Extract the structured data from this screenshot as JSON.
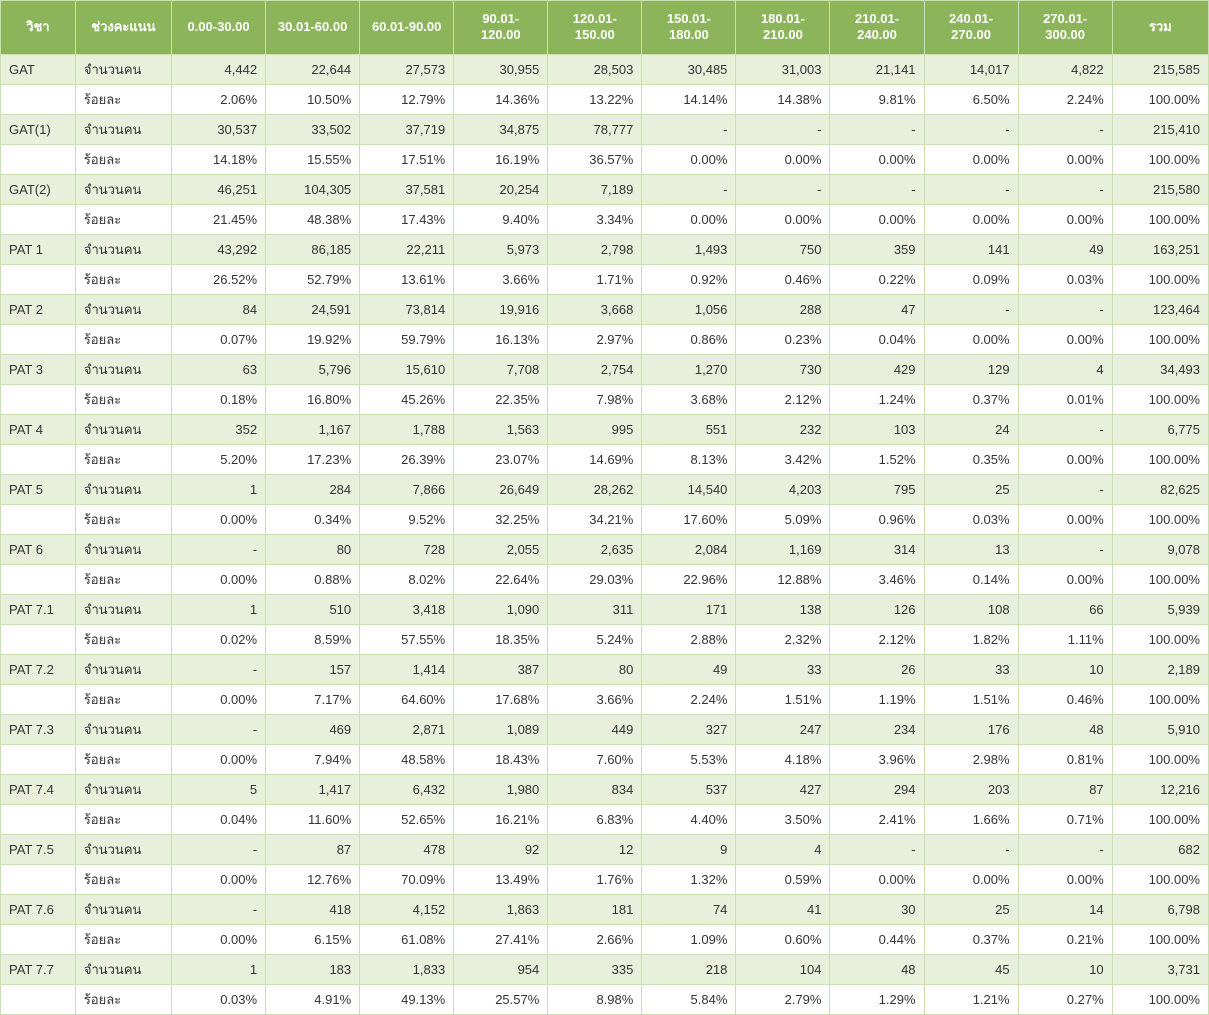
{
  "type": "table",
  "colors": {
    "header_bg": "#8cb55b",
    "header_fg": "#ffffff",
    "border": "#c9dfb1",
    "row_alt": "#e8f0dc",
    "row_base": "#ffffff",
    "text": "#333333"
  },
  "fonts": {
    "family": "Tahoma",
    "size_pt": 10,
    "header_weight": "bold"
  },
  "headers": [
    "วิชา",
    "ช่วงคะแนน",
    "0.00-30.00",
    "30.01-60.00",
    "60.01-90.00",
    "90.01-120.00",
    "120.01-150.00",
    "150.01-180.00",
    "180.01-210.00",
    "210.01-240.00",
    "240.01-270.00",
    "270.01-300.00",
    "รวม"
  ],
  "row_labels": {
    "count": "จำนวนคน",
    "percent": "ร้อยละ"
  },
  "subjects": [
    {
      "name": "GAT",
      "count": [
        "4,442",
        "22,644",
        "27,573",
        "30,955",
        "28,503",
        "30,485",
        "31,003",
        "21,141",
        "14,017",
        "4,822",
        "215,585"
      ],
      "percent": [
        "2.06%",
        "10.50%",
        "12.79%",
        "14.36%",
        "13.22%",
        "14.14%",
        "14.38%",
        "9.81%",
        "6.50%",
        "2.24%",
        "100.00%"
      ]
    },
    {
      "name": "GAT(1)",
      "count": [
        "30,537",
        "33,502",
        "37,719",
        "34,875",
        "78,777",
        "-",
        "-",
        "-",
        "-",
        "-",
        "215,410"
      ],
      "percent": [
        "14.18%",
        "15.55%",
        "17.51%",
        "16.19%",
        "36.57%",
        "0.00%",
        "0.00%",
        "0.00%",
        "0.00%",
        "0.00%",
        "100.00%"
      ]
    },
    {
      "name": "GAT(2)",
      "count": [
        "46,251",
        "104,305",
        "37,581",
        "20,254",
        "7,189",
        "-",
        "-",
        "-",
        "-",
        "-",
        "215,580"
      ],
      "percent": [
        "21.45%",
        "48.38%",
        "17.43%",
        "9.40%",
        "3.34%",
        "0.00%",
        "0.00%",
        "0.00%",
        "0.00%",
        "0.00%",
        "100.00%"
      ]
    },
    {
      "name": "PAT 1",
      "count": [
        "43,292",
        "86,185",
        "22,211",
        "5,973",
        "2,798",
        "1,493",
        "750",
        "359",
        "141",
        "49",
        "163,251"
      ],
      "percent": [
        "26.52%",
        "52.79%",
        "13.61%",
        "3.66%",
        "1.71%",
        "0.92%",
        "0.46%",
        "0.22%",
        "0.09%",
        "0.03%",
        "100.00%"
      ]
    },
    {
      "name": "PAT 2",
      "count": [
        "84",
        "24,591",
        "73,814",
        "19,916",
        "3,668",
        "1,056",
        "288",
        "47",
        "-",
        "-",
        "123,464"
      ],
      "percent": [
        "0.07%",
        "19.92%",
        "59.79%",
        "16.13%",
        "2.97%",
        "0.86%",
        "0.23%",
        "0.04%",
        "0.00%",
        "0.00%",
        "100.00%"
      ]
    },
    {
      "name": "PAT 3",
      "count": [
        "63",
        "5,796",
        "15,610",
        "7,708",
        "2,754",
        "1,270",
        "730",
        "429",
        "129",
        "4",
        "34,493"
      ],
      "percent": [
        "0.18%",
        "16.80%",
        "45.26%",
        "22.35%",
        "7.98%",
        "3.68%",
        "2.12%",
        "1.24%",
        "0.37%",
        "0.01%",
        "100.00%"
      ]
    },
    {
      "name": "PAT 4",
      "count": [
        "352",
        "1,167",
        "1,788",
        "1,563",
        "995",
        "551",
        "232",
        "103",
        "24",
        "-",
        "6,775"
      ],
      "percent": [
        "5.20%",
        "17.23%",
        "26.39%",
        "23.07%",
        "14.69%",
        "8.13%",
        "3.42%",
        "1.52%",
        "0.35%",
        "0.00%",
        "100.00%"
      ]
    },
    {
      "name": "PAT 5",
      "count": [
        "1",
        "284",
        "7,866",
        "26,649",
        "28,262",
        "14,540",
        "4,203",
        "795",
        "25",
        "-",
        "82,625"
      ],
      "percent": [
        "0.00%",
        "0.34%",
        "9.52%",
        "32.25%",
        "34.21%",
        "17.60%",
        "5.09%",
        "0.96%",
        "0.03%",
        "0.00%",
        "100.00%"
      ]
    },
    {
      "name": "PAT 6",
      "count": [
        "-",
        "80",
        "728",
        "2,055",
        "2,635",
        "2,084",
        "1,169",
        "314",
        "13",
        "-",
        "9,078"
      ],
      "percent": [
        "0.00%",
        "0.88%",
        "8.02%",
        "22.64%",
        "29.03%",
        "22.96%",
        "12.88%",
        "3.46%",
        "0.14%",
        "0.00%",
        "100.00%"
      ]
    },
    {
      "name": "PAT 7.1",
      "count": [
        "1",
        "510",
        "3,418",
        "1,090",
        "311",
        "171",
        "138",
        "126",
        "108",
        "66",
        "5,939"
      ],
      "percent": [
        "0.02%",
        "8.59%",
        "57.55%",
        "18.35%",
        "5.24%",
        "2.88%",
        "2.32%",
        "2.12%",
        "1.82%",
        "1.11%",
        "100.00%"
      ]
    },
    {
      "name": "PAT 7.2",
      "count": [
        "-",
        "157",
        "1,414",
        "387",
        "80",
        "49",
        "33",
        "26",
        "33",
        "10",
        "2,189"
      ],
      "percent": [
        "0.00%",
        "7.17%",
        "64.60%",
        "17.68%",
        "3.66%",
        "2.24%",
        "1.51%",
        "1.19%",
        "1.51%",
        "0.46%",
        "100.00%"
      ]
    },
    {
      "name": "PAT 7.3",
      "count": [
        "-",
        "469",
        "2,871",
        "1,089",
        "449",
        "327",
        "247",
        "234",
        "176",
        "48",
        "5,910"
      ],
      "percent": [
        "0.00%",
        "7.94%",
        "48.58%",
        "18.43%",
        "7.60%",
        "5.53%",
        "4.18%",
        "3.96%",
        "2.98%",
        "0.81%",
        "100.00%"
      ]
    },
    {
      "name": "PAT 7.4",
      "count": [
        "5",
        "1,417",
        "6,432",
        "1,980",
        "834",
        "537",
        "427",
        "294",
        "203",
        "87",
        "12,216"
      ],
      "percent": [
        "0.04%",
        "11.60%",
        "52.65%",
        "16.21%",
        "6.83%",
        "4.40%",
        "3.50%",
        "2.41%",
        "1.66%",
        "0.71%",
        "100.00%"
      ]
    },
    {
      "name": "PAT 7.5",
      "count": [
        "-",
        "87",
        "478",
        "92",
        "12",
        "9",
        "4",
        "-",
        "-",
        "-",
        "682"
      ],
      "percent": [
        "0.00%",
        "12.76%",
        "70.09%",
        "13.49%",
        "1.76%",
        "1.32%",
        "0.59%",
        "0.00%",
        "0.00%",
        "0.00%",
        "100.00%"
      ]
    },
    {
      "name": "PAT 7.6",
      "count": [
        "-",
        "418",
        "4,152",
        "1,863",
        "181",
        "74",
        "41",
        "30",
        "25",
        "14",
        "6,798"
      ],
      "percent": [
        "0.00%",
        "6.15%",
        "61.08%",
        "27.41%",
        "2.66%",
        "1.09%",
        "0.60%",
        "0.44%",
        "0.37%",
        "0.21%",
        "100.00%"
      ]
    },
    {
      "name": "PAT 7.7",
      "count": [
        "1",
        "183",
        "1,833",
        "954",
        "335",
        "218",
        "104",
        "48",
        "45",
        "10",
        "3,731"
      ],
      "percent": [
        "0.03%",
        "4.91%",
        "49.13%",
        "25.57%",
        "8.98%",
        "5.84%",
        "2.79%",
        "1.29%",
        "1.21%",
        "0.27%",
        "100.00%"
      ]
    }
  ]
}
